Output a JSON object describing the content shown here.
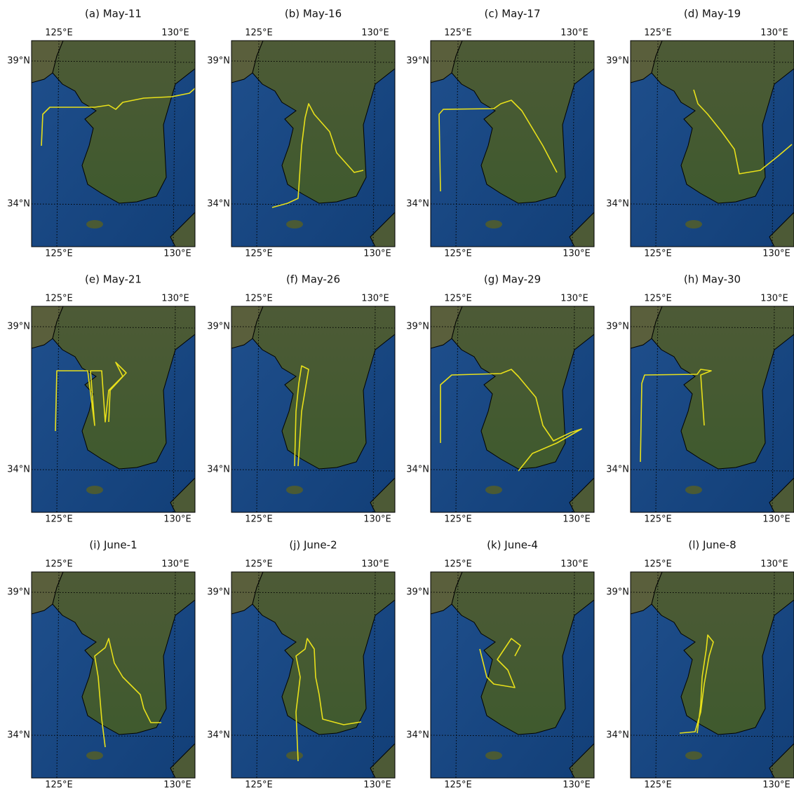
{
  "panels": [
    {
      "title": "(a) May-11"
    },
    {
      "title": "(b) May-16"
    },
    {
      "title": "(c) May-17"
    },
    {
      "title": "(d) May-19"
    },
    {
      "title": "(e) May-21"
    },
    {
      "title": "(f) May-26"
    },
    {
      "title": "(g) May-29"
    },
    {
      "title": "(h) May-30"
    },
    {
      "title": "(i) June-1"
    },
    {
      "title": "(j) June-2"
    },
    {
      "title": "(k) June-4"
    },
    {
      "title": "(l) June-8"
    }
  ],
  "lon_labels": [
    "125°E",
    "130°E"
  ],
  "lat_labels": [
    "39°N",
    "34°N"
  ]
}
